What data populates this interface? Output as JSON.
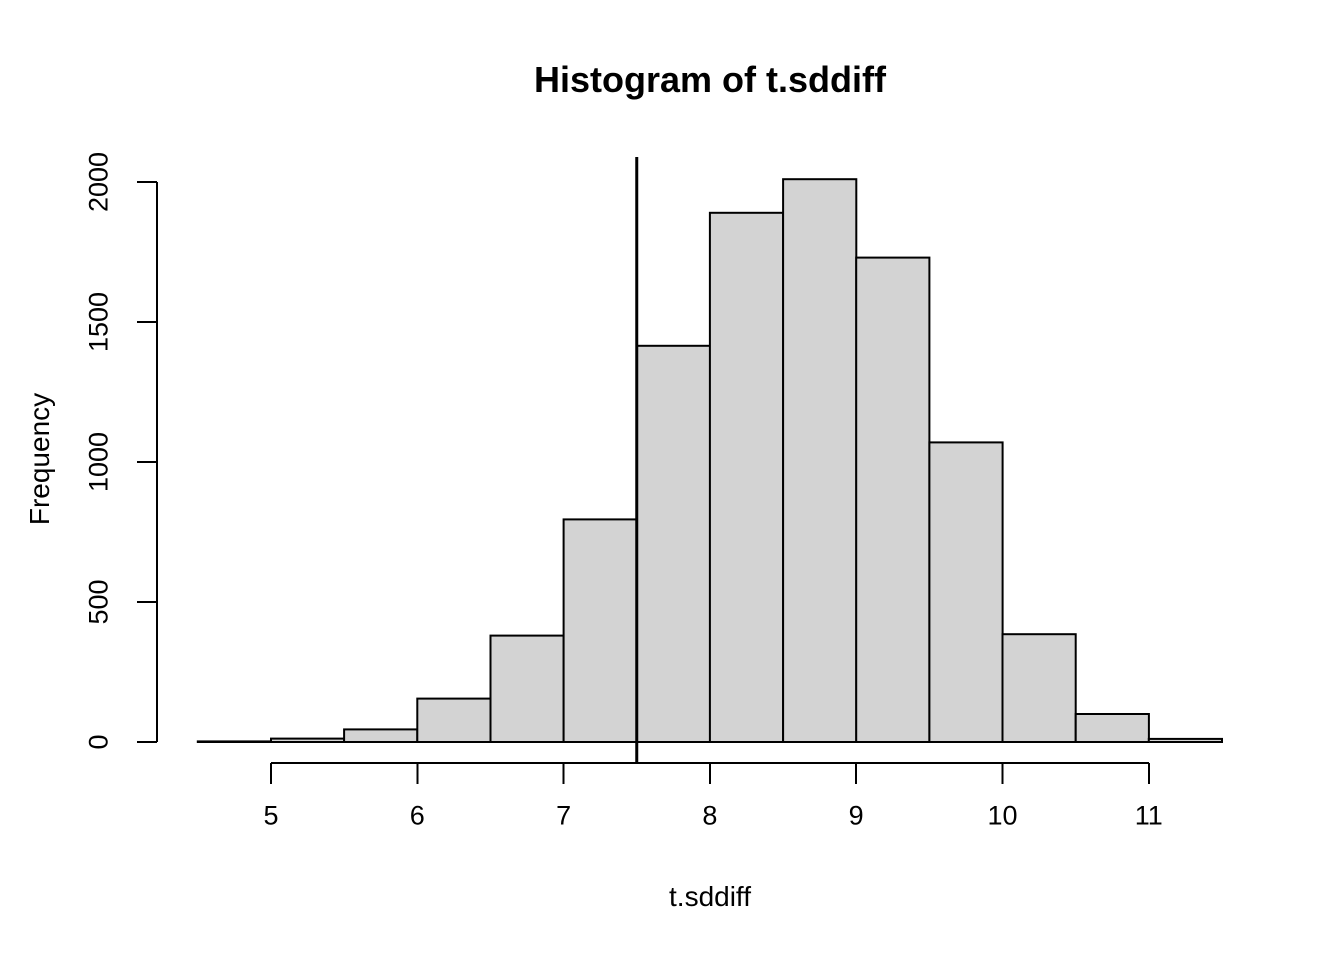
{
  "figure": {
    "background": "#ffffff",
    "title": "Histogram of t.sddiff",
    "xlabel": "t.sddiff",
    "ylabel": "Frequency"
  },
  "chart_data": {
    "type": "bar",
    "subtype": "histogram",
    "title": "Histogram of t.sddiff",
    "xlabel": "t.sddiff",
    "ylabel": "Frequency",
    "bin_start": 4.5,
    "bin_width": 0.5,
    "bin_edges": [
      4.5,
      5.0,
      5.5,
      6.0,
      6.5,
      7.0,
      7.5,
      8.0,
      8.5,
      9.0,
      9.5,
      10.0,
      10.5,
      11.0,
      11.5
    ],
    "counts": [
      2,
      12,
      45,
      155,
      380,
      795,
      1415,
      1890,
      2010,
      1730,
      1070,
      385,
      100,
      11
    ],
    "x_ticks": [
      "5",
      "6",
      "7",
      "8",
      "9",
      "10",
      "11"
    ],
    "x_tick_values": [
      5,
      6,
      7,
      8,
      9,
      10,
      11
    ],
    "y_ticks": [
      "0",
      "500",
      "1000",
      "1500",
      "2000"
    ],
    "y_tick_values": [
      0,
      500,
      1000,
      1500,
      2000
    ],
    "xlim": [
      4.5,
      11.5
    ],
    "ylim": [
      0,
      2010
    ],
    "vline_x": 7.5,
    "grid": false,
    "legend": null,
    "colors": {
      "bar_fill": "#d3d3d3",
      "bar_stroke": "#000000",
      "axis": "#000000",
      "vline": "#000000",
      "text": "#000000",
      "background": "#ffffff"
    }
  }
}
